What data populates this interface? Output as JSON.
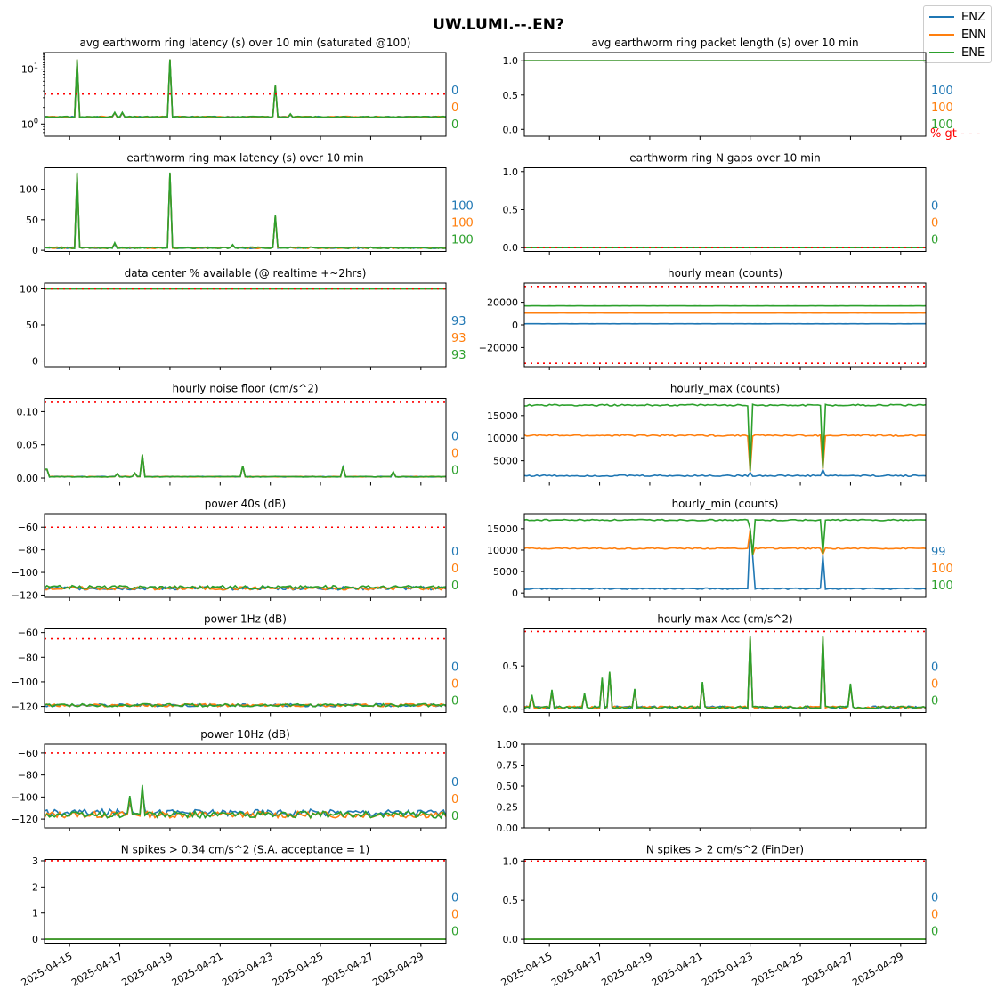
{
  "title": "UW.LUMI.--.EN?",
  "legend": [
    {
      "name": "ENZ",
      "color": "#1f77b4"
    },
    {
      "name": "ENN",
      "color": "#ff7f0e"
    },
    {
      "name": "ENE",
      "color": "#2ca02c"
    }
  ],
  "threshold_color": "#ff0000",
  "x_axis": {
    "start": "2025-04-14",
    "end": "2025-04-30",
    "tick_labels": [
      "2025-04-15",
      "2025-04-17",
      "2025-04-19",
      "2025-04-21",
      "2025-04-23",
      "2025-04-25",
      "2025-04-27",
      "2025-04-29"
    ]
  },
  "chart_data": [
    {
      "type": "line",
      "title": "avg earthworm ring latency (s)   over 10 min (saturated @100)",
      "yscale": "log",
      "ylim": [
        0.6,
        20
      ],
      "yticks": [
        {
          "value": 1,
          "base": "10",
          "exp": "0"
        },
        {
          "value": 10,
          "base": "10",
          "exp": "1"
        }
      ],
      "threshold": 3.5,
      "base": [
        1.35,
        1.35,
        1.35
      ],
      "noise": 0.03,
      "spikes": [
        {
          "day": 1.3,
          "value": 15
        },
        {
          "day": 5.0,
          "value": 15
        },
        {
          "day": 9.2,
          "value": 5
        },
        {
          "day": 2.8,
          "value": 1.6
        },
        {
          "day": 3.1,
          "value": 1.6
        },
        {
          "day": 9.8,
          "value": 1.5
        }
      ],
      "right_labels": [
        "0",
        "0",
        "0"
      ]
    },
    {
      "type": "line",
      "title": "avg earthworm ring packet length (s)   over 10 min",
      "ylim": [
        -0.1,
        1.12
      ],
      "yticks": [
        {
          "value": 0,
          "label": "0.0"
        },
        {
          "value": 0.5,
          "label": "0.5"
        },
        {
          "value": 1,
          "label": "1.0"
        }
      ],
      "base": [
        1.0,
        1.0,
        1.0
      ],
      "noise": 0,
      "spikes": [],
      "right_labels": [
        "100",
        "100",
        "100"
      ],
      "right_note": "% gt - - -"
    },
    {
      "type": "line",
      "title": "earthworm ring max latency (s)   over 10 min",
      "ylim": [
        -2,
        135
      ],
      "yticks": [
        {
          "value": 0,
          "label": "0"
        },
        {
          "value": 50,
          "label": "50"
        },
        {
          "value": 100,
          "label": "100"
        }
      ],
      "base": [
        4,
        4,
        4
      ],
      "noise": 1.2,
      "spikes": [
        {
          "day": 1.3,
          "value": 126
        },
        {
          "day": 5.0,
          "value": 126
        },
        {
          "day": 9.2,
          "value": 56
        },
        {
          "day": 2.8,
          "value": 11
        },
        {
          "day": 7.5,
          "value": 8
        }
      ],
      "right_labels": [
        "100",
        "100",
        "100"
      ]
    },
    {
      "type": "line",
      "title": "earthworm ring N gaps   over 10 min",
      "ylim": [
        -0.05,
        1.05
      ],
      "yticks": [
        {
          "value": 0,
          "label": "0.0"
        },
        {
          "value": 0.5,
          "label": "0.5"
        },
        {
          "value": 1,
          "label": "1.0"
        }
      ],
      "threshold": 0,
      "base": [
        0,
        0,
        0
      ],
      "noise": 0,
      "spikes": [],
      "right_labels": [
        "0",
        "0",
        "0"
      ]
    },
    {
      "type": "line",
      "title": "data center % available (@ realtime +~2hrs)",
      "ylim": [
        -8,
        108
      ],
      "yticks": [
        {
          "value": 0,
          "label": "0"
        },
        {
          "value": 50,
          "label": "50"
        },
        {
          "value": 100,
          "label": "100"
        }
      ],
      "threshold": 100,
      "base": [
        100,
        100,
        100
      ],
      "noise": 0,
      "spikes": [],
      "right_labels": [
        "93",
        "93",
        "93"
      ]
    },
    {
      "type": "line",
      "title": "hourly mean (counts)",
      "ylim": [
        -37000,
        37000
      ],
      "yticks": [
        {
          "value": -20000,
          "label": "−20000"
        },
        {
          "value": 0,
          "label": "0"
        },
        {
          "value": 20000,
          "label": "20000"
        }
      ],
      "thresholds": [
        34000,
        -34000
      ],
      "base": [
        1000,
        10500,
        16800
      ],
      "noise": 50,
      "spikes": [],
      "right_labels": []
    },
    {
      "type": "line",
      "title": "hourly noise floor (cm/s^2)",
      "ylim": [
        -0.006,
        0.12
      ],
      "yticks": [
        {
          "value": 0,
          "label": "0.00"
        },
        {
          "value": 0.05,
          "label": "0.05"
        },
        {
          "value": 0.1,
          "label": "0.10"
        }
      ],
      "threshold": 0.114,
      "base": [
        0.002,
        0.002,
        0.002
      ],
      "noise": 0.0005,
      "spikes": [
        {
          "day": 0.05,
          "value": 0.013
        },
        {
          "day": 2.9,
          "value": 0.006
        },
        {
          "day": 3.9,
          "value": 0.035
        },
        {
          "day": 3.6,
          "value": 0.007
        },
        {
          "day": 7.9,
          "value": 0.018
        },
        {
          "day": 11.9,
          "value": 0.017
        },
        {
          "day": 13.9,
          "value": 0.009
        }
      ],
      "right_labels": [
        "0",
        "0",
        "0"
      ]
    },
    {
      "type": "line",
      "title": "hourly_max (counts)",
      "ylim": [
        300,
        18800
      ],
      "yticks": [
        {
          "value": 5000,
          "label": "5000"
        },
        {
          "value": 10000,
          "label": "10000"
        },
        {
          "value": 15000,
          "label": "15000"
        }
      ],
      "base": [
        1700,
        10600,
        17300
      ],
      "noise": 180,
      "spikes": [
        {
          "day": 11.9,
          "value": 3200
        },
        {
          "day": 9.0,
          "value": 2600
        }
      ],
      "right_labels": []
    },
    {
      "type": "line",
      "title": "power 40s (dB)",
      "ylim": [
        -122,
        -48
      ],
      "yticks": [
        {
          "value": -120,
          "label": "−120"
        },
        {
          "value": -100,
          "label": "−100"
        },
        {
          "value": -80,
          "label": "−80"
        },
        {
          "value": -60,
          "label": "−60"
        }
      ],
      "threshold": -60,
      "base": [
        -114,
        -114,
        -113
      ],
      "noise": 1.5,
      "spikes": [],
      "right_labels": [
        "0",
        "0",
        "0"
      ]
    },
    {
      "type": "line",
      "title": "hourly_min (counts)",
      "ylim": [
        -1000,
        18500
      ],
      "yticks": [
        {
          "value": 0,
          "label": "0"
        },
        {
          "value": 5000,
          "label": "5000"
        },
        {
          "value": 10000,
          "label": "10000"
        },
        {
          "value": 15000,
          "label": "15000"
        }
      ],
      "base": [
        1000,
        10400,
        17000
      ],
      "noise": 150,
      "spikes": [
        {
          "day": 9.0,
          "value": 14800
        },
        {
          "day": 9.1,
          "value": 8800
        },
        {
          "day": 11.9,
          "value": 9000
        }
      ],
      "right_labels": [
        "99",
        "100",
        "100"
      ]
    },
    {
      "type": "line",
      "title": "power 1Hz (dB)",
      "ylim": [
        -125,
        -57
      ],
      "yticks": [
        {
          "value": -120,
          "label": "−120"
        },
        {
          "value": -100,
          "label": "−100"
        },
        {
          "value": -80,
          "label": "−80"
        },
        {
          "value": -60,
          "label": "−60"
        }
      ],
      "threshold": -65,
      "base": [
        -119,
        -119,
        -119
      ],
      "noise": 1.2,
      "spikes": [],
      "right_labels": [
        "0",
        "0",
        "0"
      ]
    },
    {
      "type": "line",
      "title": "hourly max Acc (cm/s^2)",
      "ylim": [
        -0.04,
        0.93
      ],
      "yticks": [
        {
          "value": 0,
          "label": "0.0"
        },
        {
          "value": 0.5,
          "label": "0.5"
        }
      ],
      "threshold": 0.9,
      "base": [
        0.02,
        0.02,
        0.02
      ],
      "noise": 0.015,
      "spikes": [
        {
          "day": 1.1,
          "value": 0.21
        },
        {
          "day": 3.1,
          "value": 0.35
        },
        {
          "day": 3.4,
          "value": 0.42
        },
        {
          "day": 4.4,
          "value": 0.22
        },
        {
          "day": 7.1,
          "value": 0.3
        },
        {
          "day": 9.0,
          "value": 0.83
        },
        {
          "day": 11.9,
          "value": 0.83
        },
        {
          "day": 13.0,
          "value": 0.28
        },
        {
          "day": 0.3,
          "value": 0.15
        },
        {
          "day": 2.4,
          "value": 0.17
        }
      ],
      "right_labels": [
        "0",
        "0",
        "0"
      ]
    },
    {
      "type": "line",
      "title": "power 10Hz (dB)",
      "ylim": [
        -128,
        -52
      ],
      "yticks": [
        {
          "value": -120,
          "label": "−120"
        },
        {
          "value": -100,
          "label": "−100"
        },
        {
          "value": -80,
          "label": "−80"
        },
        {
          "value": -60,
          "label": "−60"
        }
      ],
      "threshold": -60,
      "base": [
        -114,
        -116,
        -116
      ],
      "noise": 3,
      "spikes": [
        {
          "day": 3.9,
          "value": -92
        },
        {
          "day": 3.4,
          "value": -102
        }
      ],
      "right_labels": [
        "0",
        "0",
        "0"
      ]
    },
    {
      "type": "empty",
      "title": "",
      "ylim": [
        0,
        1
      ],
      "yticks": [
        {
          "value": 0,
          "label": "0.00"
        },
        {
          "value": 0.25,
          "label": "0.25"
        },
        {
          "value": 0.5,
          "label": "0.50"
        },
        {
          "value": 0.75,
          "label": "0.75"
        },
        {
          "value": 1,
          "label": "1.00"
        }
      ],
      "right_labels": []
    },
    {
      "type": "line",
      "title": "N spikes > 0.34 cm/s^2 (S.A. acceptance = 1)",
      "ylim": [
        -0.15,
        3.05
      ],
      "yticks": [
        {
          "value": 0,
          "label": "0"
        },
        {
          "value": 1,
          "label": "1"
        },
        {
          "value": 2,
          "label": "2"
        },
        {
          "value": 3,
          "label": "3"
        }
      ],
      "threshold": 3,
      "base": [
        0,
        0,
        0
      ],
      "noise": 0,
      "spikes": [],
      "right_labels": [
        "0",
        "0",
        "0"
      ]
    },
    {
      "type": "line",
      "title": "N spikes > 2 cm/s^2 (FinDer)",
      "ylim": [
        -0.05,
        1.02
      ],
      "yticks": [
        {
          "value": 0,
          "label": "0.0"
        },
        {
          "value": 0.5,
          "label": "0.5"
        },
        {
          "value": 1,
          "label": "1.0"
        }
      ],
      "threshold": 1,
      "base": [
        0,
        0,
        0
      ],
      "noise": 0,
      "spikes": [],
      "right_labels": [
        "0",
        "0",
        "0"
      ]
    }
  ]
}
